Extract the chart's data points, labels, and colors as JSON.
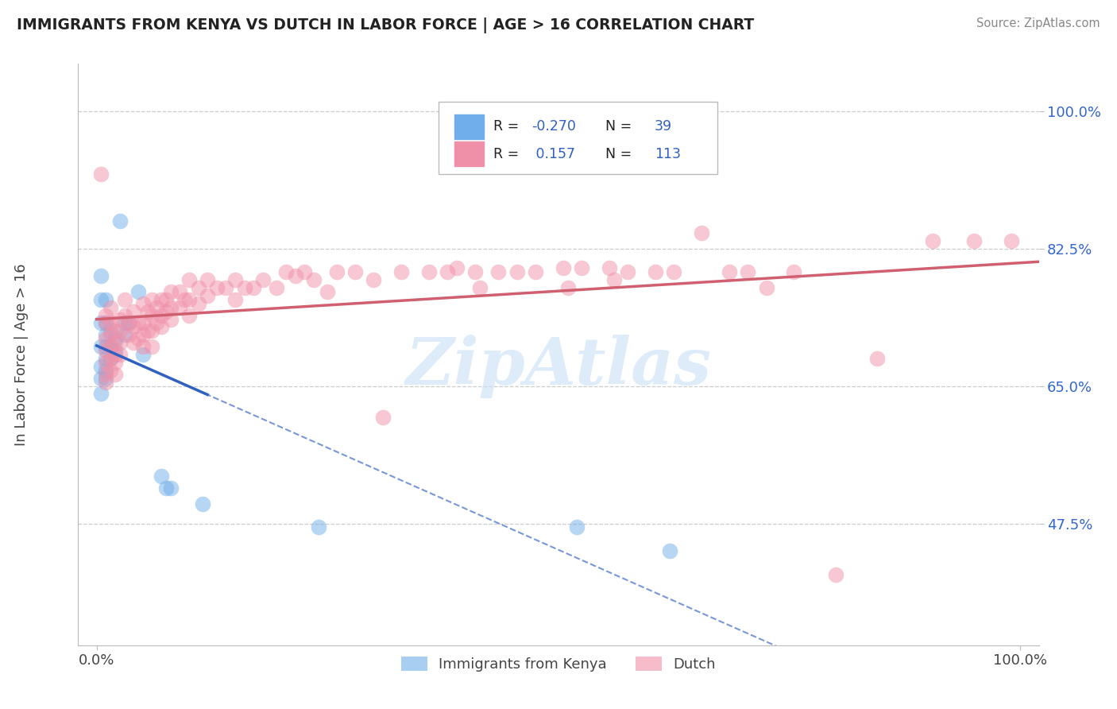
{
  "title": "IMMIGRANTS FROM KENYA VS DUTCH IN LABOR FORCE | AGE > 16 CORRELATION CHART",
  "source": "Source: ZipAtlas.com",
  "ylabel": "In Labor Force | Age > 16",
  "ytick_labels": [
    "100.0%",
    "82.5%",
    "65.0%",
    "47.5%"
  ],
  "ytick_values": [
    1.0,
    0.825,
    0.65,
    0.475
  ],
  "xlim": [
    -0.02,
    1.02
  ],
  "ylim": [
    0.32,
    1.06
  ],
  "watermark": "ZipAtlas",
  "kenya_color": "#6faee8",
  "dutch_color": "#f090a8",
  "kenya_line_color": "#3060c0",
  "dutch_line_color": "#d06070",
  "kenya_R": -0.27,
  "dutch_R": 0.157,
  "legend_blue_color": "#3060c0",
  "kenya_scatter": [
    [
      0.005,
      0.79
    ],
    [
      0.005,
      0.76
    ],
    [
      0.005,
      0.73
    ],
    [
      0.005,
      0.7
    ],
    [
      0.005,
      0.675
    ],
    [
      0.005,
      0.66
    ],
    [
      0.005,
      0.64
    ],
    [
      0.01,
      0.76
    ],
    [
      0.01,
      0.73
    ],
    [
      0.01,
      0.715
    ],
    [
      0.01,
      0.7
    ],
    [
      0.01,
      0.685
    ],
    [
      0.01,
      0.67
    ],
    [
      0.01,
      0.66
    ],
    [
      0.015,
      0.72
    ],
    [
      0.015,
      0.7
    ],
    [
      0.015,
      0.685
    ],
    [
      0.02,
      0.71
    ],
    [
      0.02,
      0.695
    ],
    [
      0.025,
      0.86
    ],
    [
      0.03,
      0.73
    ],
    [
      0.03,
      0.715
    ],
    [
      0.035,
      0.73
    ],
    [
      0.045,
      0.77
    ],
    [
      0.05,
      0.69
    ],
    [
      0.07,
      0.535
    ],
    [
      0.075,
      0.52
    ],
    [
      0.08,
      0.52
    ],
    [
      0.115,
      0.5
    ],
    [
      0.24,
      0.47
    ],
    [
      0.52,
      0.47
    ],
    [
      0.62,
      0.44
    ]
  ],
  "dutch_scatter": [
    [
      0.005,
      0.92
    ],
    [
      0.01,
      0.74
    ],
    [
      0.01,
      0.73
    ],
    [
      0.01,
      0.71
    ],
    [
      0.01,
      0.695
    ],
    [
      0.01,
      0.68
    ],
    [
      0.01,
      0.665
    ],
    [
      0.01,
      0.655
    ],
    [
      0.015,
      0.75
    ],
    [
      0.015,
      0.73
    ],
    [
      0.015,
      0.715
    ],
    [
      0.015,
      0.7
    ],
    [
      0.015,
      0.685
    ],
    [
      0.015,
      0.67
    ],
    [
      0.02,
      0.72
    ],
    [
      0.02,
      0.705
    ],
    [
      0.02,
      0.69
    ],
    [
      0.02,
      0.68
    ],
    [
      0.02,
      0.665
    ],
    [
      0.025,
      0.735
    ],
    [
      0.025,
      0.72
    ],
    [
      0.025,
      0.705
    ],
    [
      0.025,
      0.69
    ],
    [
      0.03,
      0.76
    ],
    [
      0.03,
      0.74
    ],
    [
      0.035,
      0.73
    ],
    [
      0.035,
      0.715
    ],
    [
      0.04,
      0.745
    ],
    [
      0.04,
      0.725
    ],
    [
      0.04,
      0.705
    ],
    [
      0.045,
      0.73
    ],
    [
      0.045,
      0.71
    ],
    [
      0.05,
      0.755
    ],
    [
      0.05,
      0.73
    ],
    [
      0.05,
      0.715
    ],
    [
      0.05,
      0.7
    ],
    [
      0.055,
      0.745
    ],
    [
      0.055,
      0.72
    ],
    [
      0.06,
      0.76
    ],
    [
      0.06,
      0.74
    ],
    [
      0.06,
      0.72
    ],
    [
      0.06,
      0.7
    ],
    [
      0.065,
      0.75
    ],
    [
      0.065,
      0.73
    ],
    [
      0.07,
      0.76
    ],
    [
      0.07,
      0.74
    ],
    [
      0.07,
      0.725
    ],
    [
      0.075,
      0.76
    ],
    [
      0.075,
      0.745
    ],
    [
      0.08,
      0.77
    ],
    [
      0.08,
      0.75
    ],
    [
      0.08,
      0.735
    ],
    [
      0.09,
      0.77
    ],
    [
      0.09,
      0.75
    ],
    [
      0.095,
      0.76
    ],
    [
      0.1,
      0.785
    ],
    [
      0.1,
      0.76
    ],
    [
      0.1,
      0.74
    ],
    [
      0.11,
      0.775
    ],
    [
      0.11,
      0.755
    ],
    [
      0.12,
      0.785
    ],
    [
      0.12,
      0.765
    ],
    [
      0.13,
      0.775
    ],
    [
      0.14,
      0.775
    ],
    [
      0.15,
      0.785
    ],
    [
      0.15,
      0.76
    ],
    [
      0.16,
      0.775
    ],
    [
      0.17,
      0.775
    ],
    [
      0.18,
      0.785
    ],
    [
      0.195,
      0.775
    ],
    [
      0.205,
      0.795
    ],
    [
      0.215,
      0.79
    ],
    [
      0.225,
      0.795
    ],
    [
      0.235,
      0.785
    ],
    [
      0.25,
      0.77
    ],
    [
      0.26,
      0.795
    ],
    [
      0.28,
      0.795
    ],
    [
      0.3,
      0.785
    ],
    [
      0.31,
      0.61
    ],
    [
      0.33,
      0.795
    ],
    [
      0.36,
      0.795
    ],
    [
      0.38,
      0.795
    ],
    [
      0.39,
      0.8
    ],
    [
      0.41,
      0.795
    ],
    [
      0.415,
      0.775
    ],
    [
      0.435,
      0.795
    ],
    [
      0.455,
      0.795
    ],
    [
      0.475,
      0.795
    ],
    [
      0.505,
      0.8
    ],
    [
      0.51,
      0.775
    ],
    [
      0.525,
      0.8
    ],
    [
      0.555,
      0.8
    ],
    [
      0.56,
      0.785
    ],
    [
      0.575,
      0.795
    ],
    [
      0.605,
      0.795
    ],
    [
      0.625,
      0.795
    ],
    [
      0.655,
      0.845
    ],
    [
      0.685,
      0.795
    ],
    [
      0.705,
      0.795
    ],
    [
      0.725,
      0.775
    ],
    [
      0.755,
      0.795
    ],
    [
      0.8,
      0.41
    ],
    [
      0.845,
      0.685
    ],
    [
      0.905,
      0.835
    ],
    [
      0.95,
      0.835
    ],
    [
      0.99,
      0.835
    ]
  ]
}
